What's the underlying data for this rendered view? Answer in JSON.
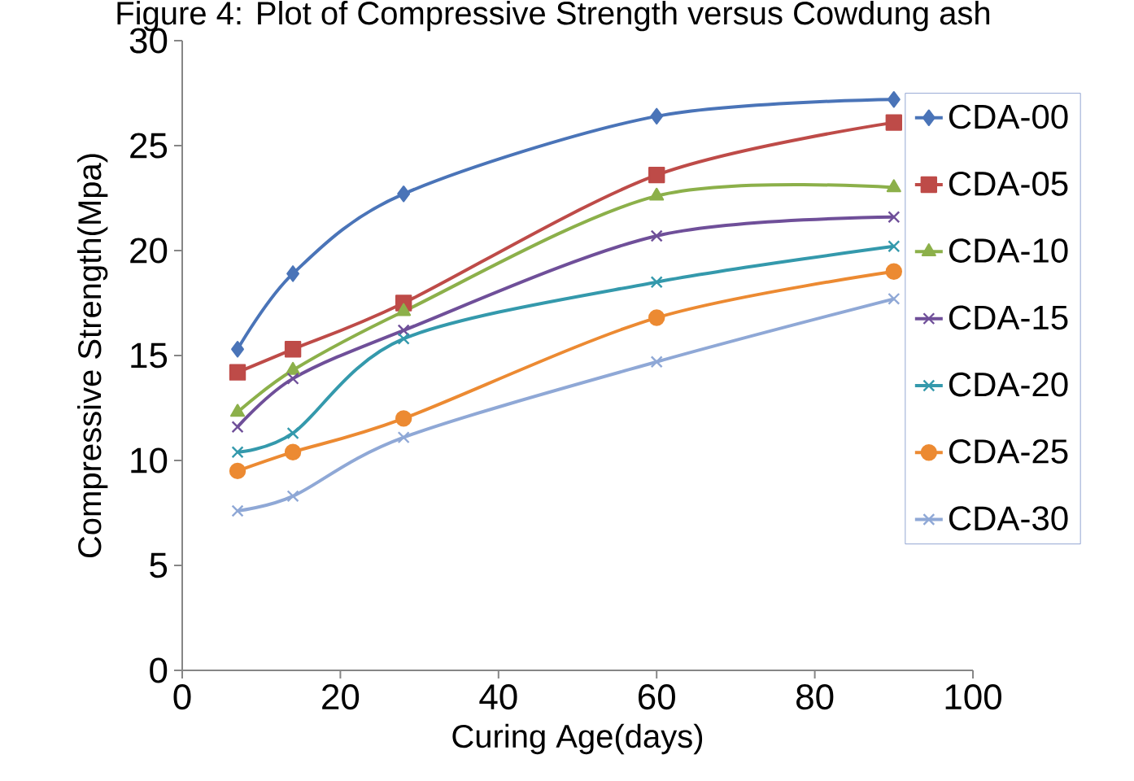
{
  "chart_data": {
    "type": "line",
    "title": "Figure 4: Plot of Compressive Strength versus Cowdung ash",
    "xlabel": "Curing Age(days)",
    "ylabel": "Compressive Strength(Mpa)",
    "x": [
      7,
      14,
      28,
      60,
      90
    ],
    "series": [
      {
        "name": "CDA-00",
        "color": "#4a74b8",
        "marker": "diamond",
        "values": [
          15.3,
          18.9,
          22.7,
          26.4,
          27.2
        ]
      },
      {
        "name": "CDA-05",
        "color": "#be4b48",
        "marker": "square",
        "values": [
          14.2,
          15.3,
          17.5,
          23.6,
          26.1
        ]
      },
      {
        "name": "CDA-10",
        "color": "#8cb04a",
        "marker": "triangle",
        "values": [
          12.3,
          14.3,
          17.1,
          22.6,
          23.0
        ]
      },
      {
        "name": "CDA-15",
        "color": "#6f4f99",
        "marker": "cross",
        "values": [
          11.6,
          13.9,
          16.2,
          20.7,
          21.6
        ]
      },
      {
        "name": "CDA-20",
        "color": "#3499ac",
        "marker": "cross",
        "values": [
          10.4,
          11.3,
          15.8,
          18.5,
          20.2
        ]
      },
      {
        "name": "CDA-25",
        "color": "#ec8a32",
        "marker": "circle",
        "values": [
          9.5,
          10.4,
          12.0,
          16.8,
          19.0
        ]
      },
      {
        "name": "CDA-30",
        "color": "#8fa8d6",
        "marker": "cross",
        "values": [
          7.6,
          8.3,
          11.1,
          14.7,
          17.7
        ]
      }
    ],
    "xlim": [
      0,
      100
    ],
    "ylim": [
      0,
      30
    ],
    "xticks": [
      0,
      20,
      40,
      60,
      80,
      100
    ],
    "yticks": [
      0,
      5,
      10,
      15,
      20,
      25,
      30
    ],
    "legend": "right",
    "line_style": "solid"
  }
}
